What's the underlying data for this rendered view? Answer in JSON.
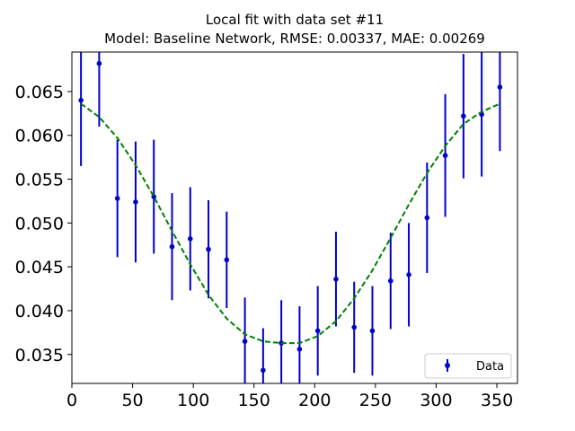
{
  "chart_data": {
    "type": "scatter",
    "title_line1": "Local fit with data set #11",
    "title_line2": "Model: Baseline Network, RMSE: 0.00337, MAE: 0.00269",
    "xlabel": "",
    "ylabel": "",
    "xlim": [
      0,
      367
    ],
    "ylim": [
      0.0317,
      0.0695
    ],
    "xticks": [
      0,
      50,
      100,
      150,
      200,
      250,
      300,
      350
    ],
    "xtick_labels": [
      "0",
      "50",
      "100",
      "150",
      "200",
      "250",
      "300",
      "350"
    ],
    "yticks": [
      0.035,
      0.04,
      0.045,
      0.05,
      0.055,
      0.06,
      0.065
    ],
    "ytick_labels": [
      "0.035",
      "0.040",
      "0.045",
      "0.050",
      "0.055",
      "0.060",
      "0.065"
    ],
    "grid": false,
    "legend_position": "lower-right",
    "series": [
      {
        "name": "Data",
        "kind": "errorbar",
        "color": "#0000cc",
        "points": [
          {
            "x": 7.5,
            "y": 0.064,
            "err": 0.0075
          },
          {
            "x": 22.5,
            "y": 0.0682,
            "err": 0.0072
          },
          {
            "x": 37.5,
            "y": 0.0528,
            "err": 0.0067
          },
          {
            "x": 52.5,
            "y": 0.0524,
            "err": 0.0069
          },
          {
            "x": 67.5,
            "y": 0.053,
            "err": 0.0065
          },
          {
            "x": 82.5,
            "y": 0.0473,
            "err": 0.0061
          },
          {
            "x": 97.5,
            "y": 0.0482,
            "err": 0.0059
          },
          {
            "x": 112.5,
            "y": 0.047,
            "err": 0.0056
          },
          {
            "x": 127.5,
            "y": 0.0458,
            "err": 0.0055
          },
          {
            "x": 142.5,
            "y": 0.0365,
            "err": 0.005
          },
          {
            "x": 157.5,
            "y": 0.0332,
            "err": 0.0048
          },
          {
            "x": 172.5,
            "y": 0.0363,
            "err": 0.0049
          },
          {
            "x": 187.5,
            "y": 0.0356,
            "err": 0.0049
          },
          {
            "x": 202.5,
            "y": 0.0377,
            "err": 0.0051
          },
          {
            "x": 217.5,
            "y": 0.0436,
            "err": 0.0054
          },
          {
            "x": 232.5,
            "y": 0.0381,
            "err": 0.0052
          },
          {
            "x": 247.5,
            "y": 0.0377,
            "err": 0.0051
          },
          {
            "x": 262.5,
            "y": 0.0434,
            "err": 0.0055
          },
          {
            "x": 277.5,
            "y": 0.0441,
            "err": 0.0059
          },
          {
            "x": 292.5,
            "y": 0.0506,
            "err": 0.0063
          },
          {
            "x": 307.5,
            "y": 0.0577,
            "err": 0.007
          },
          {
            "x": 322.5,
            "y": 0.0622,
            "err": 0.0071
          },
          {
            "x": 337.5,
            "y": 0.0624,
            "err": 0.0071
          },
          {
            "x": 352.5,
            "y": 0.0655,
            "err": 0.0073
          }
        ]
      },
      {
        "name": "",
        "kind": "fit-line",
        "color": "#008000",
        "dashed": true,
        "x": [
          7.5,
          22.5,
          37.5,
          52.5,
          67.5,
          82.5,
          97.5,
          112.5,
          127.5,
          142.5,
          157.5,
          172.5,
          187.5,
          202.5,
          217.5,
          232.5,
          247.5,
          262.5,
          277.5,
          292.5,
          307.5,
          322.5,
          337.5,
          352.5
        ],
        "y": [
          0.0636,
          0.0621,
          0.0597,
          0.0566,
          0.053,
          0.0491,
          0.0453,
          0.0418,
          0.0391,
          0.0373,
          0.0365,
          0.0363,
          0.0363,
          0.0371,
          0.0388,
          0.0414,
          0.0446,
          0.0483,
          0.0521,
          0.0557,
          0.0588,
          0.0613,
          0.0627,
          0.0636
        ]
      }
    ],
    "legend": [
      {
        "label": "Data",
        "marker": "errorbar-dot",
        "color": "#0000cc"
      }
    ]
  }
}
